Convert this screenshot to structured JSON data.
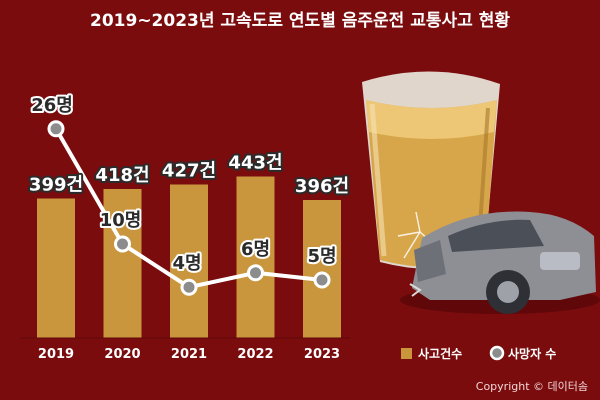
{
  "colors": {
    "background": "#7a0c0e",
    "bar": "#c9963d",
    "line": "#ffffff",
    "marker_fill": "#8c8c8c"
  },
  "chart_data": {
    "type": "bar",
    "title": "2019~2023년 고속도로 연도별 음주운전 교통사고 현황",
    "categories": [
      "2019",
      "2020",
      "2021",
      "2022",
      "2023"
    ],
    "series": [
      {
        "name": "사고건수",
        "type": "bar",
        "values": [
          399,
          418,
          427,
          443,
          396
        ],
        "labels": [
          "399건",
          "418건",
          "427건",
          "443건",
          "396건"
        ],
        "color": "#c9963d"
      },
      {
        "name": "사망자 수",
        "type": "line",
        "values": [
          26,
          10,
          4,
          6,
          5
        ],
        "labels": [
          "26명",
          "10명",
          "4명",
          "6명",
          "5명"
        ],
        "color": "#ffffff"
      }
    ],
    "legend_position": "bottom-right",
    "grid": false
  },
  "copyright": "Copyright © 데이터솜"
}
